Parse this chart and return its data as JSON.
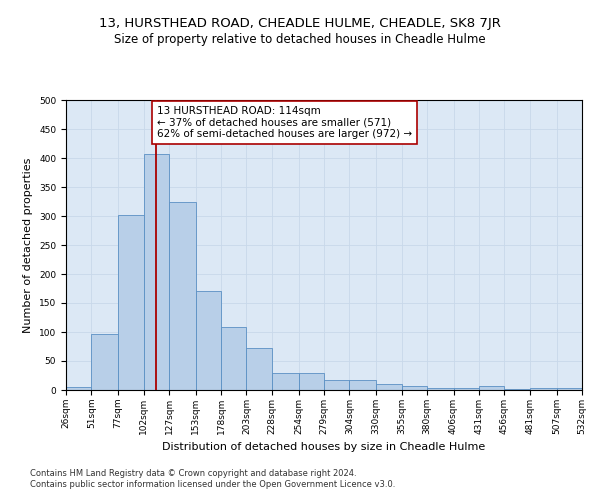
{
  "title": "13, HURSTHEAD ROAD, CHEADLE HULME, CHEADLE, SK8 7JR",
  "subtitle": "Size of property relative to detached houses in Cheadle Hulme",
  "xlabel": "Distribution of detached houses by size in Cheadle Hulme",
  "ylabel": "Number of detached properties",
  "bin_edges": [
    26,
    51,
    77,
    102,
    127,
    153,
    178,
    203,
    228,
    254,
    279,
    304,
    330,
    355,
    380,
    406,
    431,
    456,
    481,
    507,
    532
  ],
  "bar_heights": [
    5,
    97,
    301,
    407,
    325,
    170,
    108,
    73,
    30,
    30,
    18,
    17,
    11,
    7,
    4,
    4,
    7,
    2,
    4,
    3
  ],
  "bar_color": "#b8cfe8",
  "bar_edge_color": "#5a8fc3",
  "vline_x": 114,
  "vline_color": "#aa0000",
  "annotation_line1": "13 HURSTHEAD ROAD: 114sqm",
  "annotation_line2": "← 37% of detached houses are smaller (571)",
  "annotation_line3": "62% of semi-detached houses are larger (972) →",
  "annotation_box_color": "#ffffff",
  "annotation_box_edge": "#aa0000",
  "ylim": [
    0,
    500
  ],
  "yticks": [
    0,
    50,
    100,
    150,
    200,
    250,
    300,
    350,
    400,
    450,
    500
  ],
  "grid_color": "#c8d8ea",
  "background_color": "#dce8f5",
  "footer_line1": "Contains HM Land Registry data © Crown copyright and database right 2024.",
  "footer_line2": "Contains public sector information licensed under the Open Government Licence v3.0.",
  "title_fontsize": 9.5,
  "subtitle_fontsize": 8.5,
  "xlabel_fontsize": 8,
  "ylabel_fontsize": 8,
  "annot_fontsize": 7.5,
  "tick_fontsize": 6.5,
  "footer_fontsize": 6
}
